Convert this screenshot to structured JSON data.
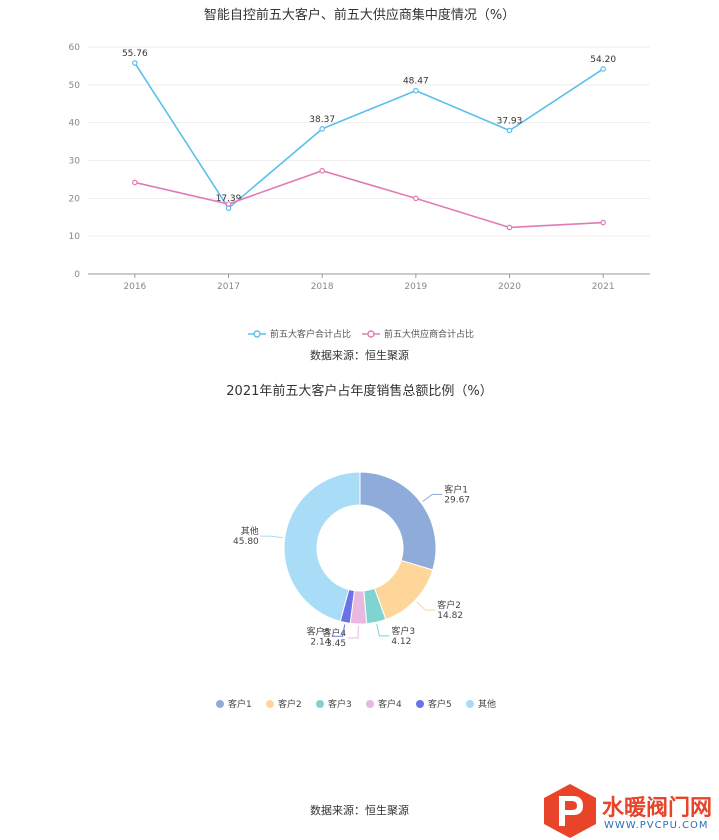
{
  "chart_data": [
    {
      "type": "line",
      "title": "智能自控前五大客户、前五大供应商集中度情况（%）",
      "categories": [
        "2016",
        "2017",
        "2018",
        "2019",
        "2020",
        "2021"
      ],
      "y_ticks": [
        "0",
        "10",
        "20",
        "30",
        "40",
        "50",
        "60"
      ],
      "ylim": [
        0,
        60
      ],
      "grid": true,
      "legend_position": "bottom",
      "series": [
        {
          "name": "前五大客户合计占比",
          "color": "#5bc0eb",
          "values": [
            55.76,
            17.39,
            38.37,
            48.47,
            37.93,
            54.2
          ],
          "labels": [
            "55.76",
            "17.39",
            "38.37",
            "48.47",
            "37.93",
            "54.20"
          ]
        },
        {
          "name": "前五大供应商合计占比",
          "color": "#e07bb5",
          "values": [
            24.2,
            18.5,
            27.3,
            20.0,
            12.3,
            13.6
          ]
        }
      ],
      "source": "数据来源：恒生聚源"
    },
    {
      "type": "pie",
      "title": "2021年前五大客户占年度销售总额比例（%）",
      "donut": true,
      "legend_position": "bottom",
      "slices": [
        {
          "name": "客户1",
          "value": 29.67,
          "label": "29.67",
          "color": "#8fabd9"
        },
        {
          "name": "客户2",
          "value": 14.82,
          "label": "14.82",
          "color": "#ffd699"
        },
        {
          "name": "客户3",
          "value": 4.12,
          "label": "4.12",
          "color": "#7fd4d0"
        },
        {
          "name": "客户4",
          "value": 3.45,
          "label": "3.45",
          "color": "#e8b8e0"
        },
        {
          "name": "客户5",
          "value": 2.14,
          "label": "2.14",
          "color": "#6b72e8"
        },
        {
          "name": "其他",
          "value": 45.8,
          "label": "45.80",
          "color": "#a8dcf7"
        }
      ],
      "source": "数据来源：恒生聚源"
    }
  ],
  "watermark": {
    "text": "水暖阀门网",
    "url": "WWW.PVCPU.COM",
    "logo_icon": "pv-logo-icon"
  },
  "colors": {
    "axis": "#999999",
    "grid": "#eeeeee",
    "text": "#333333"
  }
}
